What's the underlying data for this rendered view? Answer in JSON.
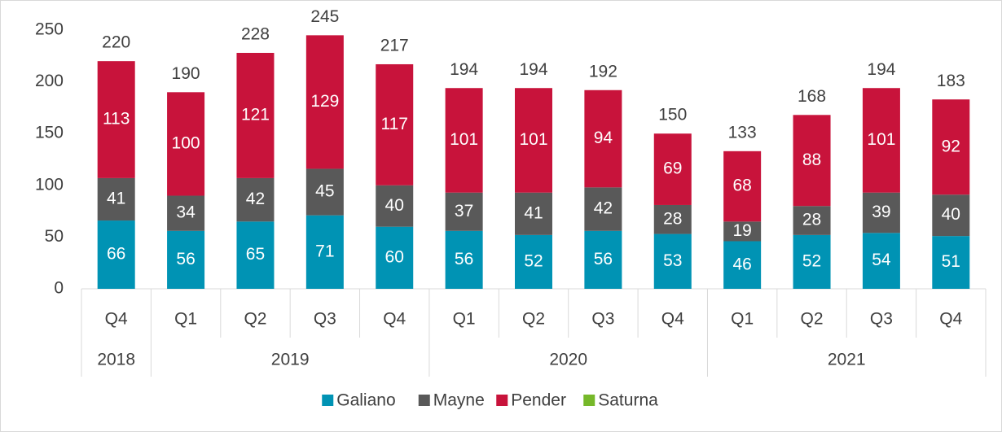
{
  "chart_data": {
    "type": "stacked-bar",
    "groups": [
      {
        "name": "2018",
        "categories": [
          "Q4"
        ]
      },
      {
        "name": "2019",
        "categories": [
          "Q1",
          "Q2",
          "Q3",
          "Q4"
        ]
      },
      {
        "name": "2020",
        "categories": [
          "Q1",
          "Q2",
          "Q3",
          "Q4"
        ]
      },
      {
        "name": "2021",
        "categories": [
          "Q1",
          "Q2",
          "Q3",
          "Q4"
        ]
      }
    ],
    "series": [
      {
        "name": "Galiano",
        "color": "#0093b4",
        "values": [
          66,
          56,
          65,
          71,
          60,
          56,
          52,
          56,
          53,
          46,
          52,
          54,
          51
        ]
      },
      {
        "name": "Mayne",
        "color": "#595959",
        "values": [
          41,
          34,
          42,
          45,
          40,
          37,
          41,
          42,
          28,
          19,
          28,
          39,
          40
        ]
      },
      {
        "name": "Pender",
        "color": "#c8133b",
        "values": [
          113,
          100,
          121,
          129,
          117,
          101,
          101,
          94,
          69,
          68,
          88,
          101,
          92
        ]
      },
      {
        "name": "Saturna",
        "color": "#76b82a",
        "values": [
          0,
          0,
          0,
          0,
          0,
          0,
          0,
          0,
          0,
          0,
          0,
          0,
          0
        ]
      }
    ],
    "total_labels": [
      "220",
      "190",
      "228",
      "245",
      "217",
      "194",
      "194",
      "192",
      "150",
      "133",
      "168",
      "194",
      "183"
    ],
    "ylim": [
      0,
      250
    ],
    "yticks": [
      0,
      50,
      100,
      150,
      200,
      250
    ],
    "legend": "bottom"
  }
}
